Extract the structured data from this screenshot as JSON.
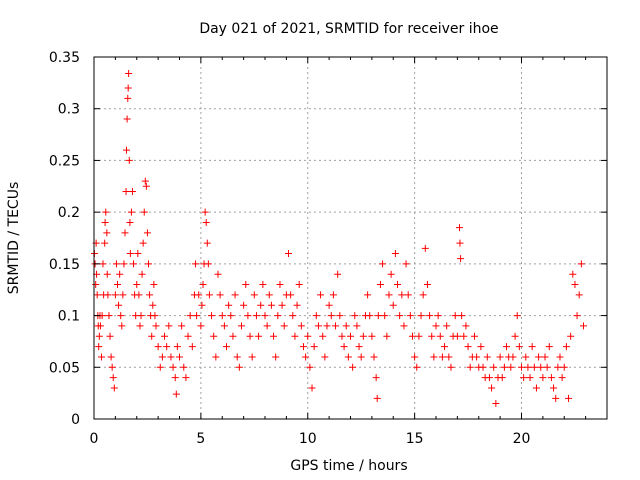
{
  "chart_data": {
    "type": "scatter",
    "title": "Day 021 of 2021, SRMTID for receiver ihoe",
    "xlabel": "GPS time / hours",
    "ylabel": "SRMTID / TECUs",
    "xlim": [
      0,
      24
    ],
    "ylim": [
      0,
      0.35
    ],
    "xticks": [
      0,
      5,
      10,
      15,
      20
    ],
    "xtick_labels": [
      "0",
      "5",
      "10",
      "15",
      "20"
    ],
    "yticks": [
      0,
      0.05,
      0.1,
      0.15,
      0.2,
      0.25,
      0.3,
      0.35
    ],
    "ytick_labels": [
      "0",
      "0.05",
      "0.1",
      "0.15",
      "0.2",
      "0.25",
      "0.3",
      "0.35"
    ],
    "grid": true,
    "marker": "+",
    "marker_color": "#ff0000",
    "series": [
      {
        "name": "SRMTID",
        "points": [
          [
            0.02,
            0.16
          ],
          [
            0.05,
            0.15
          ],
          [
            0.08,
            0.13
          ],
          [
            0.1,
            0.17
          ],
          [
            0.12,
            0.14
          ],
          [
            0.15,
            0.12
          ],
          [
            0.18,
            0.1
          ],
          [
            0.2,
            0.09
          ],
          [
            0.22,
            0.07
          ],
          [
            0.25,
            0.08
          ],
          [
            0.28,
            0.1
          ],
          [
            0.3,
            0.09
          ],
          [
            0.35,
            0.06
          ],
          [
            0.38,
            0.1
          ],
          [
            0.42,
            0.15
          ],
          [
            0.45,
            0.12
          ],
          [
            0.5,
            0.17
          ],
          [
            0.52,
            0.19
          ],
          [
            0.55,
            0.2
          ],
          [
            0.6,
            0.18
          ],
          [
            0.62,
            0.14
          ],
          [
            0.65,
            0.12
          ],
          [
            0.7,
            0.1
          ],
          [
            0.75,
            0.08
          ],
          [
            0.8,
            0.06
          ],
          [
            0.85,
            0.05
          ],
          [
            0.9,
            0.04
          ],
          [
            0.95,
            0.03
          ],
          [
            1.0,
            0.12
          ],
          [
            1.05,
            0.15
          ],
          [
            1.1,
            0.13
          ],
          [
            1.15,
            0.11
          ],
          [
            1.2,
            0.14
          ],
          [
            1.25,
            0.1
          ],
          [
            1.3,
            0.09
          ],
          [
            1.35,
            0.12
          ],
          [
            1.4,
            0.15
          ],
          [
            1.45,
            0.18
          ],
          [
            1.5,
            0.22
          ],
          [
            1.52,
            0.26
          ],
          [
            1.55,
            0.29
          ],
          [
            1.58,
            0.31
          ],
          [
            1.6,
            0.32
          ],
          [
            1.62,
            0.334
          ],
          [
            1.65,
            0.25
          ],
          [
            1.68,
            0.19
          ],
          [
            1.7,
            0.16
          ],
          [
            1.75,
            0.2
          ],
          [
            1.8,
            0.22
          ],
          [
            1.85,
            0.15
          ],
          [
            1.9,
            0.12
          ],
          [
            1.95,
            0.1
          ],
          [
            2.0,
            0.13
          ],
          [
            2.05,
            0.16
          ],
          [
            2.1,
            0.12
          ],
          [
            2.15,
            0.09
          ],
          [
            2.2,
            0.1
          ],
          [
            2.25,
            0.14
          ],
          [
            2.3,
            0.17
          ],
          [
            2.35,
            0.2
          ],
          [
            2.4,
            0.23
          ],
          [
            2.45,
            0.225
          ],
          [
            2.5,
            0.18
          ],
          [
            2.55,
            0.15
          ],
          [
            2.6,
            0.12
          ],
          [
            2.65,
            0.1
          ],
          [
            2.7,
            0.08
          ],
          [
            2.75,
            0.11
          ],
          [
            2.8,
            0.13
          ],
          [
            2.85,
            0.1
          ],
          [
            2.9,
            0.09
          ],
          [
            3.0,
            0.07
          ],
          [
            3.1,
            0.05
          ],
          [
            3.2,
            0.06
          ],
          [
            3.3,
            0.08
          ],
          [
            3.4,
            0.07
          ],
          [
            3.5,
            0.09
          ],
          [
            3.6,
            0.06
          ],
          [
            3.7,
            0.05
          ],
          [
            3.8,
            0.04
          ],
          [
            3.85,
            0.024
          ],
          [
            3.9,
            0.07
          ],
          [
            4.0,
            0.06
          ],
          [
            4.1,
            0.09
          ],
          [
            4.2,
            0.05
          ],
          [
            4.3,
            0.04
          ],
          [
            4.4,
            0.08
          ],
          [
            4.5,
            0.1
          ],
          [
            4.6,
            0.07
          ],
          [
            4.7,
            0.12
          ],
          [
            4.75,
            0.15
          ],
          [
            4.8,
            0.1
          ],
          [
            4.9,
            0.12
          ],
          [
            5.0,
            0.09
          ],
          [
            5.05,
            0.11
          ],
          [
            5.1,
            0.13
          ],
          [
            5.15,
            0.15
          ],
          [
            5.2,
            0.2
          ],
          [
            5.25,
            0.19
          ],
          [
            5.3,
            0.17
          ],
          [
            5.35,
            0.15
          ],
          [
            5.4,
            0.12
          ],
          [
            5.5,
            0.1
          ],
          [
            5.6,
            0.08
          ],
          [
            5.7,
            0.06
          ],
          [
            5.8,
            0.14
          ],
          [
            5.9,
            0.12
          ],
          [
            6.0,
            0.1
          ],
          [
            6.1,
            0.09
          ],
          [
            6.2,
            0.07
          ],
          [
            6.3,
            0.11
          ],
          [
            6.4,
            0.1
          ],
          [
            6.5,
            0.08
          ],
          [
            6.6,
            0.12
          ],
          [
            6.7,
            0.06
          ],
          [
            6.8,
            0.05
          ],
          [
            6.9,
            0.09
          ],
          [
            7.0,
            0.11
          ],
          [
            7.1,
            0.13
          ],
          [
            7.2,
            0.1
          ],
          [
            7.3,
            0.08
          ],
          [
            7.4,
            0.06
          ],
          [
            7.5,
            0.12
          ],
          [
            7.6,
            0.1
          ],
          [
            7.7,
            0.08
          ],
          [
            7.8,
            0.11
          ],
          [
            7.9,
            0.13
          ],
          [
            8.0,
            0.1
          ],
          [
            8.1,
            0.09
          ],
          [
            8.2,
            0.12
          ],
          [
            8.3,
            0.11
          ],
          [
            8.4,
            0.08
          ],
          [
            8.5,
            0.06
          ],
          [
            8.6,
            0.1
          ],
          [
            8.7,
            0.13
          ],
          [
            8.8,
            0.11
          ],
          [
            8.9,
            0.09
          ],
          [
            9.0,
            0.12
          ],
          [
            9.1,
            0.16
          ],
          [
            9.2,
            0.12
          ],
          [
            9.3,
            0.1
          ],
          [
            9.4,
            0.08
          ],
          [
            9.5,
            0.11
          ],
          [
            9.6,
            0.13
          ],
          [
            9.7,
            0.09
          ],
          [
            9.8,
            0.07
          ],
          [
            9.9,
            0.06
          ],
          [
            10.0,
            0.08
          ],
          [
            10.1,
            0.05
          ],
          [
            10.2,
            0.03
          ],
          [
            10.3,
            0.07
          ],
          [
            10.4,
            0.1
          ],
          [
            10.5,
            0.09
          ],
          [
            10.6,
            0.12
          ],
          [
            10.7,
            0.08
          ],
          [
            10.8,
            0.06
          ],
          [
            10.9,
            0.09
          ],
          [
            11.0,
            0.11
          ],
          [
            11.1,
            0.1
          ],
          [
            11.2,
            0.12
          ],
          [
            11.3,
            0.09
          ],
          [
            11.4,
            0.14
          ],
          [
            11.5,
            0.1
          ],
          [
            11.6,
            0.08
          ],
          [
            11.7,
            0.07
          ],
          [
            11.8,
            0.09
          ],
          [
            11.9,
            0.06
          ],
          [
            12.0,
            0.08
          ],
          [
            12.1,
            0.05
          ],
          [
            12.2,
            0.1
          ],
          [
            12.3,
            0.09
          ],
          [
            12.4,
            0.07
          ],
          [
            12.5,
            0.06
          ],
          [
            12.6,
            0.08
          ],
          [
            12.7,
            0.1
          ],
          [
            12.8,
            0.12
          ],
          [
            12.9,
            0.1
          ],
          [
            13.0,
            0.08
          ],
          [
            13.1,
            0.06
          ],
          [
            13.2,
            0.04
          ],
          [
            13.25,
            0.02
          ],
          [
            13.3,
            0.1
          ],
          [
            13.4,
            0.13
          ],
          [
            13.5,
            0.15
          ],
          [
            13.6,
            0.1
          ],
          [
            13.7,
            0.08
          ],
          [
            13.8,
            0.12
          ],
          [
            13.9,
            0.14
          ],
          [
            14.0,
            0.11
          ],
          [
            14.1,
            0.16
          ],
          [
            14.2,
            0.13
          ],
          [
            14.3,
            0.1
          ],
          [
            14.4,
            0.12
          ],
          [
            14.5,
            0.09
          ],
          [
            14.6,
            0.15
          ],
          [
            14.7,
            0.12
          ],
          [
            14.8,
            0.1
          ],
          [
            14.9,
            0.08
          ],
          [
            15.0,
            0.06
          ],
          [
            15.1,
            0.05
          ],
          [
            15.2,
            0.08
          ],
          [
            15.3,
            0.1
          ],
          [
            15.4,
            0.12
          ],
          [
            15.5,
            0.165
          ],
          [
            15.6,
            0.13
          ],
          [
            15.7,
            0.1
          ],
          [
            15.8,
            0.08
          ],
          [
            15.9,
            0.06
          ],
          [
            16.0,
            0.09
          ],
          [
            16.1,
            0.1
          ],
          [
            16.2,
            0.08
          ],
          [
            16.3,
            0.06
          ],
          [
            16.4,
            0.07
          ],
          [
            16.5,
            0.09
          ],
          [
            16.6,
            0.06
          ],
          [
            16.7,
            0.05
          ],
          [
            16.8,
            0.08
          ],
          [
            16.9,
            0.1
          ],
          [
            17.0,
            0.08
          ],
          [
            17.1,
            0.185
          ],
          [
            17.12,
            0.17
          ],
          [
            17.15,
            0.155
          ],
          [
            17.2,
            0.1
          ],
          [
            17.3,
            0.08
          ],
          [
            17.4,
            0.09
          ],
          [
            17.5,
            0.07
          ],
          [
            17.6,
            0.05
          ],
          [
            17.7,
            0.06
          ],
          [
            17.8,
            0.08
          ],
          [
            17.9,
            0.06
          ],
          [
            18.0,
            0.05
          ],
          [
            18.1,
            0.07
          ],
          [
            18.2,
            0.05
          ],
          [
            18.3,
            0.04
          ],
          [
            18.4,
            0.06
          ],
          [
            18.5,
            0.04
          ],
          [
            18.6,
            0.03
          ],
          [
            18.7,
            0.05
          ],
          [
            18.8,
            0.015
          ],
          [
            18.9,
            0.04
          ],
          [
            19.0,
            0.06
          ],
          [
            19.1,
            0.04
          ],
          [
            19.2,
            0.05
          ],
          [
            19.3,
            0.07
          ],
          [
            19.4,
            0.06
          ],
          [
            19.5,
            0.05
          ],
          [
            19.6,
            0.06
          ],
          [
            19.7,
            0.08
          ],
          [
            19.8,
            0.1
          ],
          [
            19.9,
            0.07
          ],
          [
            20.0,
            0.05
          ],
          [
            20.1,
            0.04
          ],
          [
            20.2,
            0.06
          ],
          [
            20.3,
            0.05
          ],
          [
            20.4,
            0.04
          ],
          [
            20.5,
            0.07
          ],
          [
            20.6,
            0.05
          ],
          [
            20.7,
            0.03
          ],
          [
            20.8,
            0.06
          ],
          [
            20.9,
            0.05
          ],
          [
            21.0,
            0.04
          ],
          [
            21.1,
            0.06
          ],
          [
            21.2,
            0.05
          ],
          [
            21.3,
            0.07
          ],
          [
            21.4,
            0.04
          ],
          [
            21.5,
            0.03
          ],
          [
            21.6,
            0.02
          ],
          [
            21.7,
            0.05
          ],
          [
            21.8,
            0.06
          ],
          [
            21.9,
            0.04
          ],
          [
            22.0,
            0.05
          ],
          [
            22.1,
            0.07
          ],
          [
            22.2,
            0.02
          ],
          [
            22.3,
            0.08
          ],
          [
            22.4,
            0.14
          ],
          [
            22.5,
            0.13
          ],
          [
            22.6,
            0.1
          ],
          [
            22.7,
            0.12
          ],
          [
            22.8,
            0.15
          ],
          [
            22.9,
            0.09
          ]
        ]
      }
    ]
  }
}
